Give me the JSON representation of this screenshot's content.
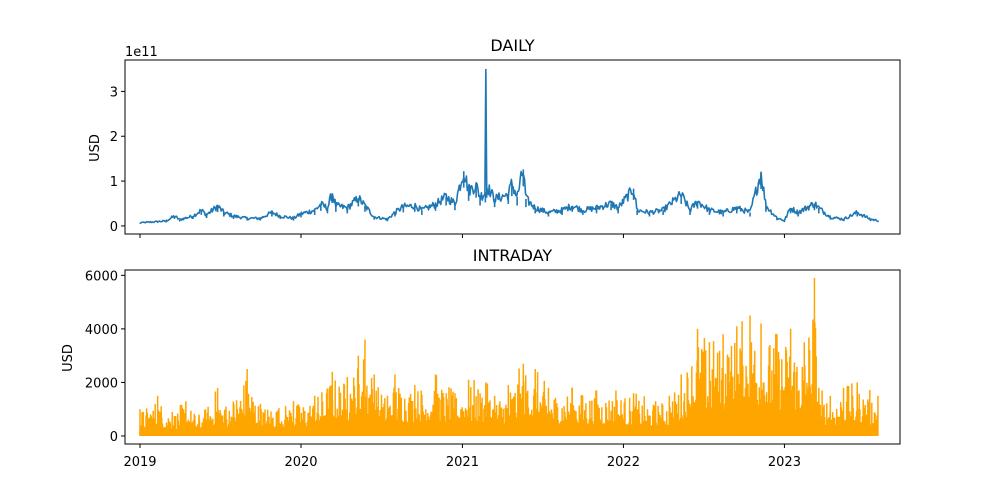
{
  "chart_data": [
    {
      "type": "line",
      "title": "DAILY",
      "ylabel": "USD",
      "y_multiplier_label": "1e11",
      "ylim": [
        -0.18,
        3.7
      ],
      "yticks": [
        0,
        1,
        2,
        3
      ],
      "xlim": [
        "2018-11-28",
        "2023-09-20"
      ],
      "xticks": [
        "2019-01-01",
        "2020-01-01",
        "2021-01-01",
        "2022-01-01",
        "2023-01-01"
      ],
      "xtick_labels_visible": false,
      "color": "#1f77b4",
      "series": [
        {
          "points": [
            [
              "2019-01-01",
              0.07
            ],
            [
              "2019-02-01",
              0.09
            ],
            [
              "2019-03-01",
              0.11
            ],
            [
              "2019-03-20",
              0.22
            ],
            [
              "2019-04-01",
              0.14
            ],
            [
              "2019-05-01",
              0.22
            ],
            [
              "2019-05-20",
              0.35
            ],
            [
              "2019-06-01",
              0.25
            ],
            [
              "2019-06-26",
              0.44
            ],
            [
              "2019-07-10",
              0.3
            ],
            [
              "2019-08-01",
              0.22
            ],
            [
              "2019-09-01",
              0.17
            ],
            [
              "2019-10-01",
              0.17
            ],
            [
              "2019-10-27",
              0.3
            ],
            [
              "2019-11-15",
              0.22
            ],
            [
              "2019-12-15",
              0.17
            ],
            [
              "2020-01-01",
              0.27
            ],
            [
              "2020-02-01",
              0.35
            ],
            [
              "2020-02-15",
              0.48
            ],
            [
              "2020-03-01",
              0.4
            ],
            [
              "2020-03-12",
              0.73
            ],
            [
              "2020-03-20",
              0.45
            ],
            [
              "2020-04-15",
              0.4
            ],
            [
              "2020-05-10",
              0.62
            ],
            [
              "2020-05-25",
              0.45
            ],
            [
              "2020-06-15",
              0.2
            ],
            [
              "2020-07-15",
              0.15
            ],
            [
              "2020-08-01",
              0.3
            ],
            [
              "2020-08-20",
              0.43
            ],
            [
              "2020-09-15",
              0.45
            ],
            [
              "2020-10-01",
              0.35
            ],
            [
              "2020-11-01",
              0.48
            ],
            [
              "2020-11-25",
              0.65
            ],
            [
              "2020-12-15",
              0.5
            ],
            [
              "2021-01-04",
              1.22
            ],
            [
              "2021-01-15",
              0.8
            ],
            [
              "2021-02-01",
              0.9
            ],
            [
              "2021-02-10",
              0.65
            ],
            [
              "2021-02-22",
              0.75
            ],
            [
              "2021-02-23",
              3.5
            ],
            [
              "2021-02-25",
              0.9
            ],
            [
              "2021-03-15",
              0.6
            ],
            [
              "2021-04-15",
              0.7
            ],
            [
              "2021-04-23",
              0.95
            ],
            [
              "2021-05-05",
              0.65
            ],
            [
              "2021-05-19",
              1.26
            ],
            [
              "2021-05-25",
              0.6
            ],
            [
              "2021-06-15",
              0.4
            ],
            [
              "2021-07-15",
              0.3
            ],
            [
              "2021-08-15",
              0.35
            ],
            [
              "2021-09-07",
              0.45
            ],
            [
              "2021-10-01",
              0.35
            ],
            [
              "2021-11-01",
              0.4
            ],
            [
              "2021-12-04",
              0.5
            ],
            [
              "2021-12-20",
              0.4
            ],
            [
              "2022-01-24",
              0.83
            ],
            [
              "2022-02-01",
              0.35
            ],
            [
              "2022-03-01",
              0.3
            ],
            [
              "2022-04-01",
              0.35
            ],
            [
              "2022-05-12",
              0.7
            ],
            [
              "2022-06-01",
              0.35
            ],
            [
              "2022-06-18",
              0.55
            ],
            [
              "2022-07-15",
              0.35
            ],
            [
              "2022-08-15",
              0.3
            ],
            [
              "2022-09-15",
              0.4
            ],
            [
              "2022-10-15",
              0.3
            ],
            [
              "2022-11-09",
              1.18
            ],
            [
              "2022-11-20",
              0.45
            ],
            [
              "2022-12-15",
              0.18
            ],
            [
              "2023-01-01",
              0.12
            ],
            [
              "2023-01-15",
              0.4
            ],
            [
              "2023-02-01",
              0.3
            ],
            [
              "2023-03-10",
              0.5
            ],
            [
              "2023-03-20",
              0.4
            ],
            [
              "2023-04-15",
              0.2
            ],
            [
              "2023-05-15",
              0.15
            ],
            [
              "2023-06-15",
              0.3
            ],
            [
              "2023-07-15",
              0.15
            ],
            [
              "2023-08-01",
              0.12
            ]
          ]
        }
      ]
    },
    {
      "type": "line",
      "title": "INTRADAY",
      "ylabel": "USD",
      "ylim": [
        -300,
        6200
      ],
      "yticks": [
        0,
        2000,
        4000,
        6000
      ],
      "xlim": [
        "2018-11-28",
        "2023-09-20"
      ],
      "xticks": [
        "2019-01-01",
        "2020-01-01",
        "2021-01-01",
        "2022-01-01",
        "2023-01-01"
      ],
      "xtick_labels": [
        "2019",
        "2020",
        "2021",
        "2022",
        "2023"
      ],
      "color": "#ffa500",
      "envelope": [
        [
          "2019-01-01",
          1000
        ],
        [
          "2019-02-10",
          1500
        ],
        [
          "2019-03-15",
          900
        ],
        [
          "2019-04-15",
          1300
        ],
        [
          "2019-05-15",
          800
        ],
        [
          "2019-06-26",
          1800
        ],
        [
          "2019-07-15",
          1100
        ],
        [
          "2019-09-01",
          2500
        ],
        [
          "2019-10-01",
          1200
        ],
        [
          "2019-12-15",
          1300
        ],
        [
          "2020-02-01",
          1500
        ],
        [
          "2020-03-12",
          2400
        ],
        [
          "2020-04-15",
          2200
        ],
        [
          "2020-05-10",
          3000
        ],
        [
          "2020-05-25",
          3600
        ],
        [
          "2020-06-15",
          2300
        ],
        [
          "2020-07-15",
          1500
        ],
        [
          "2020-08-01",
          2300
        ],
        [
          "2020-09-15",
          1900
        ],
        [
          "2020-11-01",
          2300
        ],
        [
          "2020-12-15",
          1600
        ],
        [
          "2021-01-15",
          2100
        ],
        [
          "2021-02-23",
          2000
        ],
        [
          "2021-03-15",
          1500
        ],
        [
          "2021-04-15",
          1900
        ],
        [
          "2021-05-19",
          2700
        ],
        [
          "2021-06-15",
          2500
        ],
        [
          "2021-07-15",
          1800
        ],
        [
          "2021-09-07",
          1800
        ],
        [
          "2021-11-01",
          1700
        ],
        [
          "2021-12-15",
          1700
        ],
        [
          "2022-01-24",
          1600
        ],
        [
          "2022-03-15",
          1300
        ],
        [
          "2022-04-15",
          1500
        ],
        [
          "2022-05-12",
          2300
        ],
        [
          "2022-06-18",
          4000
        ],
        [
          "2022-07-15",
          3500
        ],
        [
          "2022-08-15",
          3800
        ],
        [
          "2022-09-15",
          4100
        ],
        [
          "2022-10-15",
          4500
        ],
        [
          "2022-11-09",
          4200
        ],
        [
          "2022-12-15",
          3800
        ],
        [
          "2023-01-15",
          4000
        ],
        [
          "2023-02-15",
          3500
        ],
        [
          "2023-03-10",
          5900
        ],
        [
          "2023-03-20",
          1800
        ],
        [
          "2023-04-15",
          1500
        ],
        [
          "2023-05-15",
          1800
        ],
        [
          "2023-06-15",
          2000
        ],
        [
          "2023-08-01",
          1500
        ]
      ]
    }
  ]
}
